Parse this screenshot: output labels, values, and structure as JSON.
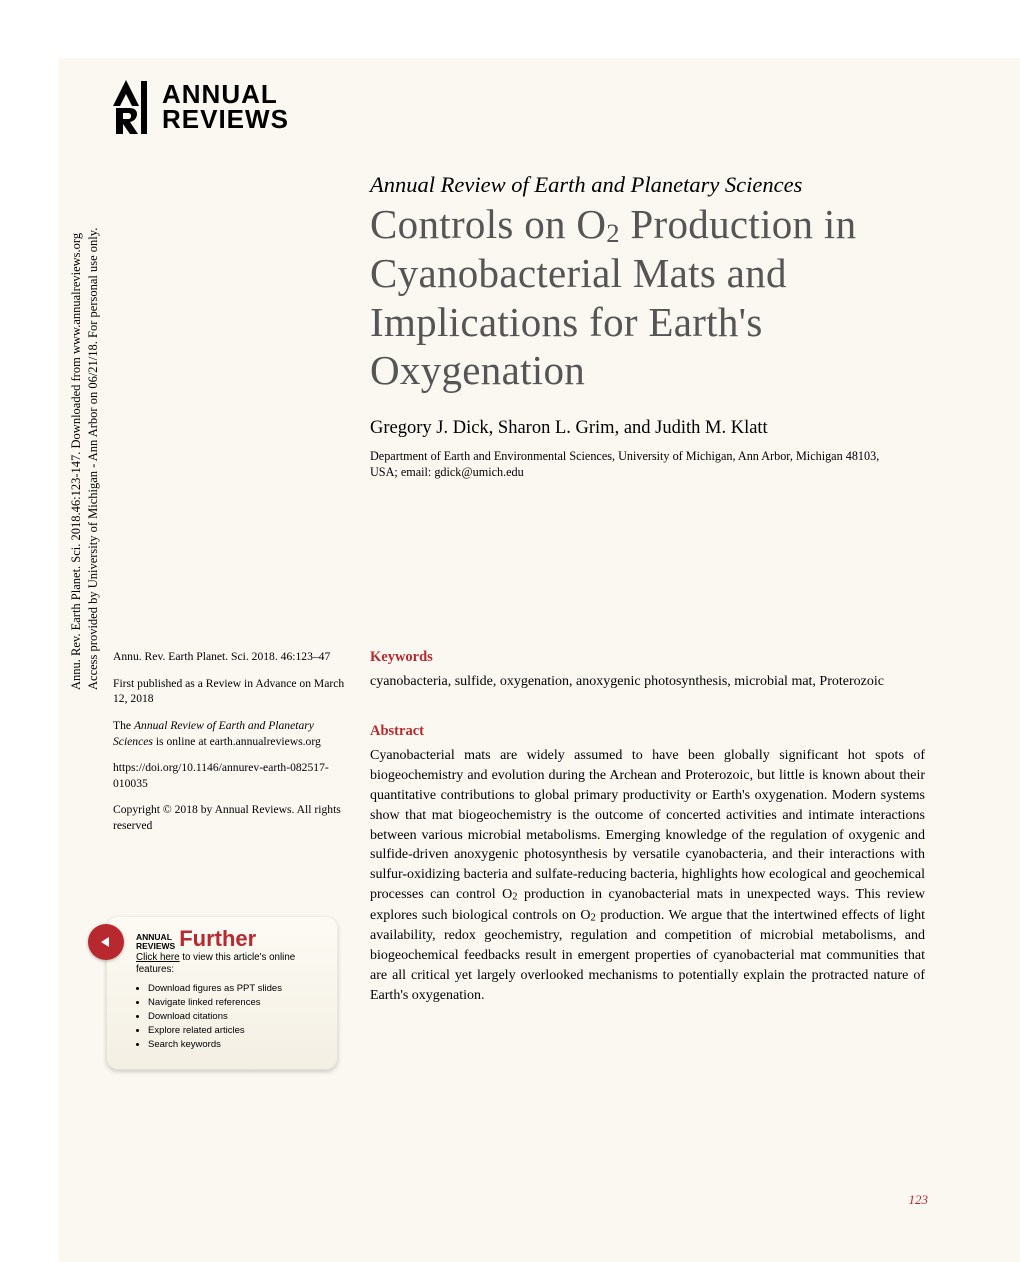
{
  "publisher": {
    "logo_line1": "ANNUAL",
    "logo_line2": "REVIEWS"
  },
  "vertical_note": {
    "line1": "Annu. Rev. Earth Planet. Sci. 2018.46:123-147. Downloaded from www.annualreviews.org",
    "line2": "Access provided by University of Michigan - Ann Arbor on 06/21/18. For personal use only."
  },
  "journal_name": "Annual Review of Earth and Planetary Sciences",
  "title_html": "Controls on O<sub>2</sub> Production in Cyanobacterial Mats and Implications for Earth's Oxygenation",
  "authors": "Gregory J. Dick, Sharon L. Grim, and Judith M. Klatt",
  "affiliation": "Department of Earth and Environmental Sciences, University of Michigan, Ann Arbor, Michigan 48103, USA; email: gdick@umich.edu",
  "meta": {
    "citation": "Annu. Rev. Earth Planet. Sci. 2018. 46:123–47",
    "first_published": "First published as a Review in Advance on March 12, 2018",
    "online_html": "The <span class=\"ital\">Annual Review of Earth and Planetary Sciences</span> is online at earth.annualreviews.org",
    "doi": "https://doi.org/10.1146/annurev-earth-082517-010035",
    "copyright": "Copyright © 2018 by Annual Reviews. All rights reserved"
  },
  "keywords": {
    "heading": "Keywords",
    "body": "cyanobacteria, sulfide, oxygenation, anoxygenic photosynthesis, microbial mat, Proterozoic"
  },
  "abstract": {
    "heading": "Abstract",
    "body_html": "Cyanobacterial mats are widely assumed to have been globally significant hot spots of biogeochemistry and evolution during the Archean and Proterozoic, but little is known about their quantitative contributions to global primary productivity or Earth's oxygenation. Modern systems show that mat biogeochemistry is the outcome of concerted activities and intimate interactions between various microbial metabolisms. Emerging knowledge of the regulation of oxygenic and sulfide-driven anoxygenic photosynthesis by versatile cyanobacteria, and their interactions with sulfur-oxidizing bacteria and sulfate-reducing bacteria, highlights how ecological and geochemical processes can control O<sub>2</sub> production in cyanobacterial mats in unexpected ways. This review explores such biological controls on O<sub>2</sub> production. We argue that the intertwined effects of light availability, redox geochemistry, regulation and competition of microbial metabolisms, and biogeochemical feedbacks result in emergent properties of cyanobacterial mat communities that are all critical yet largely overlooked mechanisms to potentially explain the protracted nature of Earth's oxygenation."
  },
  "further": {
    "small_line1": "ANNUAL",
    "small_line2": "REVIEWS",
    "big": "Further",
    "click_html": "<span class=\"u\">Click here</span> to view this article's online features:",
    "items": [
      "Download figures as PPT slides",
      "Navigate linked references",
      "Download citations",
      "Explore related articles",
      "Search keywords"
    ]
  },
  "page_number": "123",
  "colors": {
    "accent_red": "#b8292f",
    "page_bg": "#fbf8f2",
    "title_grey": "#555555"
  }
}
